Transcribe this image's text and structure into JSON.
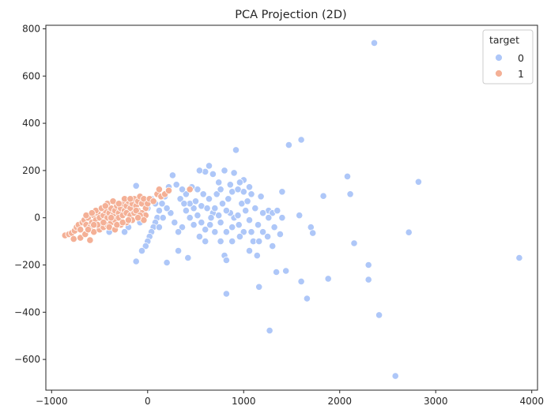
{
  "chart_data": {
    "type": "scatter",
    "title": "PCA Projection (2D)",
    "xlabel": "",
    "ylabel": "",
    "xlim": [
      -1060,
      4060
    ],
    "ylim": [
      -730,
      815
    ],
    "xticks": [
      -1000,
      0,
      1000,
      2000,
      3000,
      4000
    ],
    "yticks": [
      -600,
      -400,
      -200,
      0,
      200,
      400,
      600,
      800
    ],
    "xtick_labels": [
      "−1000",
      "0",
      "1000",
      "2000",
      "3000",
      "4000"
    ],
    "ytick_labels": [
      "−600",
      "−400",
      "−200",
      "0",
      "200",
      "400",
      "600",
      "800"
    ],
    "grid": false,
    "legend": {
      "title": "target",
      "placement": "top-right"
    },
    "series": [
      {
        "name": "0",
        "color": "#aec7f8",
        "points": [
          [
            2360,
            740
          ],
          [
            1600,
            330
          ],
          [
            1470,
            308
          ],
          [
            920,
            287
          ],
          [
            640,
            220
          ],
          [
            600,
            195
          ],
          [
            540,
            200
          ],
          [
            680,
            185
          ],
          [
            800,
            200
          ],
          [
            900,
            190
          ],
          [
            1000,
            160
          ],
          [
            960,
            150
          ],
          [
            740,
            150
          ],
          [
            860,
            140
          ],
          [
            1060,
            130
          ],
          [
            2080,
            175
          ],
          [
            2820,
            152
          ],
          [
            2110,
            100
          ],
          [
            1830,
            92
          ],
          [
            1400,
            110
          ],
          [
            1000,
            110
          ],
          [
            1080,
            100
          ],
          [
            1180,
            90
          ],
          [
            1260,
            30
          ],
          [
            1300,
            20
          ],
          [
            1350,
            30
          ],
          [
            1400,
            0
          ],
          [
            1580,
            10
          ],
          [
            1700,
            -40
          ],
          [
            1720,
            -65
          ],
          [
            2150,
            -108
          ],
          [
            2720,
            -62
          ],
          [
            3870,
            -170
          ],
          [
            2300,
            -200
          ],
          [
            2300,
            -262
          ],
          [
            1880,
            -258
          ],
          [
            1600,
            -270
          ],
          [
            1660,
            -342
          ],
          [
            1440,
            -225
          ],
          [
            1340,
            -230
          ],
          [
            1160,
            -293
          ],
          [
            1270,
            -478
          ],
          [
            820,
            -322
          ],
          [
            2410,
            -412
          ],
          [
            2580,
            -670
          ],
          [
            1300,
            -120
          ],
          [
            1250,
            -80
          ],
          [
            1200,
            -60
          ],
          [
            1150,
            -30
          ],
          [
            1100,
            -100
          ],
          [
            1060,
            -140
          ],
          [
            1000,
            -60
          ],
          [
            950,
            -30
          ],
          [
            900,
            0
          ],
          [
            860,
            20
          ],
          [
            800,
            -160
          ],
          [
            820,
            -180
          ],
          [
            760,
            -100
          ],
          [
            700,
            -60
          ],
          [
            650,
            -30
          ],
          [
            600,
            -50
          ],
          [
            560,
            -20
          ],
          [
            520,
            10
          ],
          [
            480,
            40
          ],
          [
            440,
            60
          ],
          [
            400,
            100
          ],
          [
            360,
            120
          ],
          [
            300,
            140
          ],
          [
            260,
            180
          ],
          [
            220,
            130
          ],
          [
            180,
            90
          ],
          [
            150,
            60
          ],
          [
            120,
            30
          ],
          [
            100,
            0
          ],
          [
            80,
            -20
          ],
          [
            60,
            -40
          ],
          [
            40,
            -60
          ],
          [
            20,
            -80
          ],
          [
            0,
            -100
          ],
          [
            -20,
            -120
          ],
          [
            -60,
            -140
          ],
          [
            -120,
            -185
          ],
          [
            200,
            -190
          ],
          [
            320,
            -140
          ],
          [
            420,
            -170
          ],
          [
            500,
            70
          ],
          [
            560,
            50
          ],
          [
            620,
            40
          ],
          [
            680,
            20
          ],
          [
            740,
            10
          ],
          [
            780,
            60
          ],
          [
            840,
            80
          ],
          [
            880,
            110
          ],
          [
            940,
            120
          ],
          [
            980,
            60
          ],
          [
            1040,
            70
          ],
          [
            1120,
            40
          ],
          [
            1200,
            20
          ],
          [
            1260,
            0
          ],
          [
            1320,
            -40
          ],
          [
            1380,
            -70
          ],
          [
            1140,
            -160
          ],
          [
            1060,
            -10
          ],
          [
            960,
            -80
          ],
          [
            880,
            -40
          ],
          [
            820,
            -60
          ],
          [
            760,
            -20
          ],
          [
            700,
            40
          ],
          [
            640,
            80
          ],
          [
            580,
            100
          ],
          [
            520,
            120
          ],
          [
            460,
            130
          ],
          [
            400,
            30
          ],
          [
            360,
            -40
          ],
          [
            320,
            -60
          ],
          [
            280,
            -20
          ],
          [
            240,
            20
          ],
          [
            200,
            40
          ],
          [
            160,
            0
          ],
          [
            120,
            -40
          ],
          [
            80,
            60
          ],
          [
            40,
            80
          ],
          [
            0,
            40
          ],
          [
            -40,
            20
          ],
          [
            -80,
            -20
          ],
          [
            -100,
            30
          ],
          [
            -140,
            60
          ],
          [
            -160,
            20
          ],
          [
            -200,
            -40
          ],
          [
            -240,
            -60
          ],
          [
            -280,
            -30
          ],
          [
            -320,
            10
          ],
          [
            -360,
            -20
          ],
          [
            -400,
            -60
          ],
          [
            -120,
            135
          ],
          [
            340,
            80
          ],
          [
            380,
            60
          ],
          [
            440,
            0
          ],
          [
            480,
            -30
          ],
          [
            540,
            -80
          ],
          [
            600,
            -100
          ],
          [
            660,
            0
          ],
          [
            720,
            100
          ],
          [
            760,
            120
          ],
          [
            820,
            30
          ],
          [
            880,
            -100
          ],
          [
            940,
            10
          ],
          [
            1020,
            30
          ],
          [
            1080,
            -60
          ],
          [
            1160,
            -100
          ]
        ]
      },
      {
        "name": "1",
        "color": "#f4b096",
        "points": [
          [
            -860,
            -75
          ],
          [
            -820,
            -70
          ],
          [
            -790,
            -65
          ],
          [
            -760,
            -55
          ],
          [
            -740,
            -40
          ],
          [
            -720,
            -30
          ],
          [
            -700,
            -50
          ],
          [
            -680,
            -20
          ],
          [
            -660,
            -10
          ],
          [
            -640,
            -30
          ],
          [
            -620,
            0
          ],
          [
            -600,
            -40
          ],
          [
            -580,
            -20
          ],
          [
            -560,
            10
          ],
          [
            -540,
            -10
          ],
          [
            -520,
            20
          ],
          [
            -500,
            0
          ],
          [
            -480,
            -30
          ],
          [
            -460,
            10
          ],
          [
            -440,
            30
          ],
          [
            -420,
            0
          ],
          [
            -400,
            20
          ],
          [
            -380,
            40
          ],
          [
            -360,
            10
          ],
          [
            -340,
            30
          ],
          [
            -320,
            50
          ],
          [
            -300,
            20
          ],
          [
            -280,
            40
          ],
          [
            -260,
            60
          ],
          [
            -240,
            30
          ],
          [
            -220,
            50
          ],
          [
            -200,
            70
          ],
          [
            -180,
            40
          ],
          [
            -160,
            60
          ],
          [
            -140,
            80
          ],
          [
            -120,
            50
          ],
          [
            -100,
            70
          ],
          [
            -80,
            90
          ],
          [
            -60,
            60
          ],
          [
            -40,
            80
          ],
          [
            -20,
            40
          ],
          [
            0,
            60
          ],
          [
            20,
            80
          ],
          [
            60,
            70
          ],
          [
            100,
            100
          ],
          [
            140,
            90
          ],
          [
            180,
            100
          ],
          [
            220,
            115
          ],
          [
            120,
            120
          ],
          [
            440,
            120
          ],
          [
            -600,
            -95
          ],
          [
            -700,
            -85
          ],
          [
            -770,
            -90
          ],
          [
            -650,
            -70
          ],
          [
            -560,
            -60
          ],
          [
            -500,
            -50
          ],
          [
            -460,
            -40
          ],
          [
            -420,
            -30
          ],
          [
            -380,
            -20
          ],
          [
            -340,
            -10
          ],
          [
            -300,
            0
          ],
          [
            -260,
            10
          ],
          [
            -220,
            20
          ],
          [
            -180,
            10
          ],
          [
            -140,
            20
          ],
          [
            -100,
            30
          ],
          [
            -60,
            20
          ],
          [
            -20,
            10
          ],
          [
            -540,
            30
          ],
          [
            -480,
            40
          ],
          [
            -420,
            60
          ],
          [
            -360,
            70
          ],
          [
            -300,
            60
          ],
          [
            -240,
            80
          ],
          [
            -180,
            80
          ],
          [
            -120,
            30
          ],
          [
            -80,
            10
          ],
          [
            -40,
            -10
          ],
          [
            -640,
            10
          ],
          [
            -580,
            20
          ],
          [
            -520,
            -30
          ],
          [
            -460,
            -20
          ],
          [
            -400,
            -40
          ],
          [
            -340,
            -50
          ],
          [
            -280,
            -30
          ],
          [
            -220,
            -20
          ],
          [
            -160,
            -10
          ],
          [
            -100,
            0
          ],
          [
            -440,
            50
          ],
          [
            -380,
            0
          ],
          [
            -320,
            -30
          ],
          [
            -260,
            -20
          ],
          [
            -200,
            -10
          ],
          [
            -560,
            -30
          ],
          [
            -620,
            -50
          ]
        ]
      }
    ]
  }
}
